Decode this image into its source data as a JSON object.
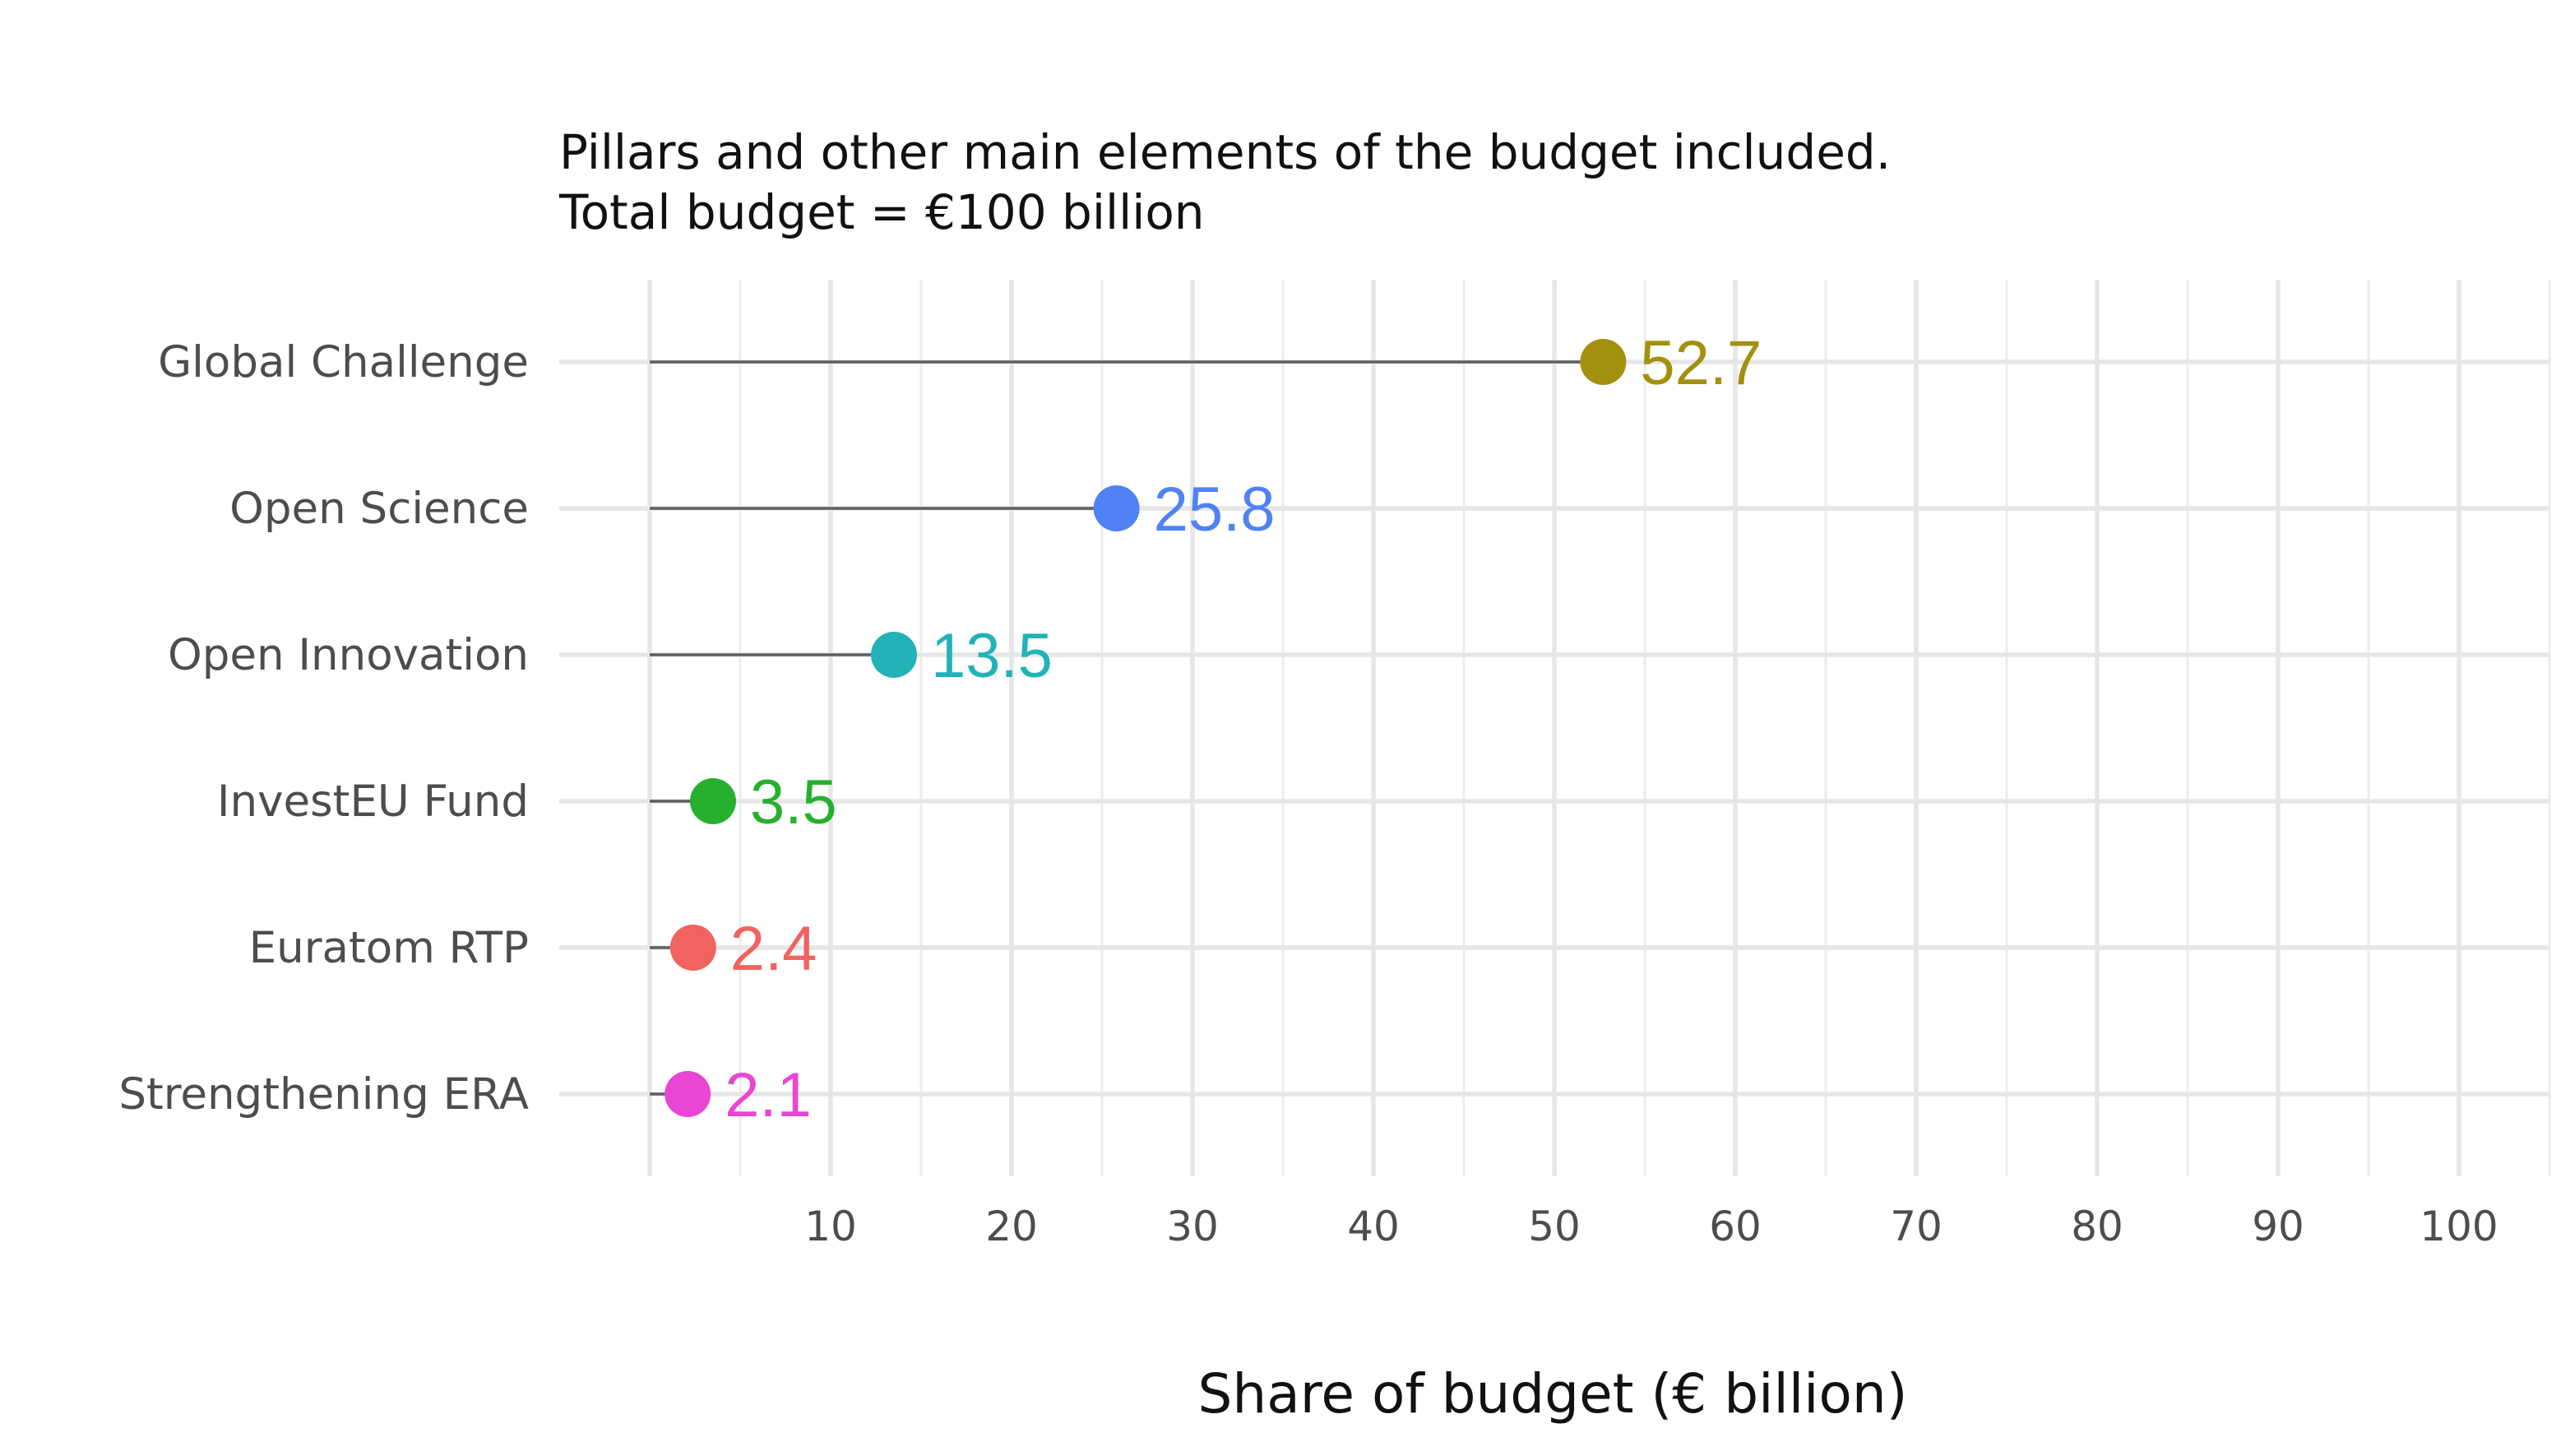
{
  "chart_data": {
    "type": "lollipop",
    "subtitle_lines": [
      "Pillars and other main elements of the budget included.",
      "Total budget = €100 billion"
    ],
    "xlabel": "Share of budget (€ billion)",
    "ylabel": "",
    "xlim": [
      0,
      105
    ],
    "x_ticks": [
      10,
      20,
      30,
      40,
      50,
      60,
      70,
      80,
      90,
      100
    ],
    "grid": true,
    "legend": "none",
    "categories": [
      "Global Challenge",
      "Open Science",
      "Open Innovation",
      "InvestEU Fund",
      "Euratom RTP",
      "Strengthening ERA"
    ],
    "values": [
      52.7,
      25.8,
      13.5,
      3.5,
      2.4,
      2.1
    ],
    "value_labels": [
      "52.7",
      "25.8",
      "13.5",
      "3.5",
      "2.4",
      "2.1"
    ],
    "colors": [
      "#A3900E",
      "#5082F5",
      "#22B2B8",
      "#26B02E",
      "#F2625E",
      "#EA46D4"
    ],
    "stem_color": "#5f5f5f"
  }
}
